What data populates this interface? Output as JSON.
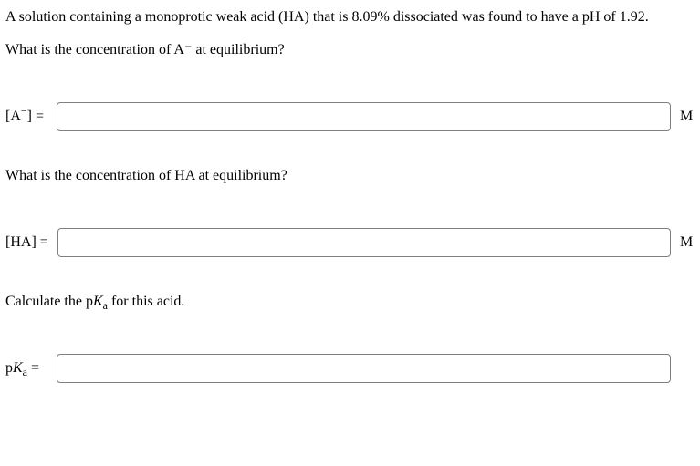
{
  "background_color": "#ffffff",
  "text_color": "#000000",
  "font_family": "Times New Roman",
  "font_size_pt": 12,
  "input_border_color": "#808080",
  "input_border_radius": 4,
  "intro_line1_pre": "A solution containing a monoprotic weak acid (HA) that is ",
  "intro_pct": "8.09%",
  "intro_line1_mid": " dissociated was found to have a pH of ",
  "intro_ph": "1.92",
  "intro_line1_post": ".",
  "q1_text": "What is the concentration of A⁻ at equilibrium?",
  "q1_label_open": "[A",
  "q1_label_sup": "−",
  "q1_label_close": "] =",
  "q1_value": "",
  "q1_unit": "M",
  "q2_text": "What is the concentration of HA at equilibrium?",
  "q2_label": "[HA] =",
  "q2_value": "",
  "q2_unit": "M",
  "q3_pre": "Calculate the p",
  "q3_Ka_K": "K",
  "q3_Ka_a": "a",
  "q3_post": " for this acid.",
  "q3_label_pre": "p",
  "q3_label_K": "K",
  "q3_label_a": "a",
  "q3_label_post": " =",
  "q3_value": ""
}
